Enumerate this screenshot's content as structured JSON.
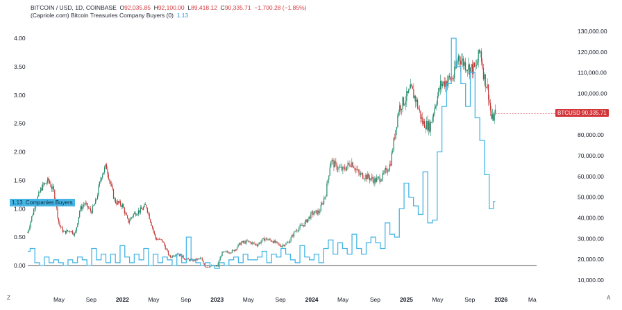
{
  "header": {
    "symbol": "BITCOIN / USD, 1D, COINBASE",
    "o_label": "O",
    "o_value": "92,035.85",
    "h_label": "H",
    "h_value": "92,100.00",
    "l_label": "L",
    "l_value": "89,418.12",
    "c_label": "C",
    "c_value": "90,335.71",
    "change": "−1,700.28 (−1.85%)",
    "indicator": "(Capriole.com) Bitcoin Treasuries Company Buyers (0)",
    "indicator_value": "1.13"
  },
  "tags": {
    "btc_label": "BTCUSD",
    "btc_value": "90,335.71",
    "left_value": "1.13",
    "left_label": "Companies Buyers"
  },
  "corners": {
    "bottom_left": "Z",
    "bottom_right": "A"
  },
  "colors": {
    "up": "#1f8a6b",
    "down": "#c43a3a",
    "indicator": "#45b5e6",
    "price_tag": "#d1363a",
    "axis": "#131722"
  },
  "chart_data": {
    "type": "line",
    "left_axis": {
      "ticks": [
        "0.00",
        "0.50",
        "1.00",
        "1.50",
        "2.00",
        "2.50",
        "3.00",
        "3.50",
        "4.00"
      ],
      "range": [
        0,
        4.0
      ]
    },
    "right_axis": {
      "ticks": [
        "10,000.00",
        "20,000.00",
        "30,000.00",
        "40,000.00",
        "50,000.00",
        "60,000.00",
        "70,000.00",
        "80,000.00",
        "90,000.00",
        "100,000.00",
        "110,000.00",
        "120,000.00",
        "130,000.00"
      ],
      "range": [
        10000,
        130000
      ]
    },
    "x_ticks": [
      {
        "label": "May",
        "t": 2021.33,
        "bold": false
      },
      {
        "label": "Sep",
        "t": 2021.67,
        "bold": false
      },
      {
        "label": "2022",
        "t": 2022.0,
        "bold": true
      },
      {
        "label": "May",
        "t": 2022.33,
        "bold": false
      },
      {
        "label": "Sep",
        "t": 2022.67,
        "bold": false
      },
      {
        "label": "2023",
        "t": 2023.0,
        "bold": true
      },
      {
        "label": "May",
        "t": 2023.33,
        "bold": false
      },
      {
        "label": "Sep",
        "t": 2023.67,
        "bold": false
      },
      {
        "label": "2024",
        "t": 2024.0,
        "bold": true
      },
      {
        "label": "May",
        "t": 2024.33,
        "bold": false
      },
      {
        "label": "Sep",
        "t": 2024.67,
        "bold": false
      },
      {
        "label": "2025",
        "t": 2025.0,
        "bold": true
      },
      {
        "label": "May",
        "t": 2025.33,
        "bold": false
      },
      {
        "label": "Sep",
        "t": 2025.67,
        "bold": false
      },
      {
        "label": "2026",
        "t": 2026.0,
        "bold": true
      },
      {
        "label": "Ma",
        "t": 2026.33,
        "bold": false
      }
    ],
    "x_range": [
      2021.0,
      2026.5
    ],
    "series": [
      {
        "name": "BTCUSD",
        "axis": "right",
        "x": [
          2021.0,
          2021.08,
          2021.15,
          2021.22,
          2021.28,
          2021.33,
          2021.38,
          2021.45,
          2021.5,
          2021.55,
          2021.6,
          2021.67,
          2021.72,
          2021.78,
          2021.83,
          2021.87,
          2021.92,
          2022.0,
          2022.06,
          2022.12,
          2022.2,
          2022.25,
          2022.3,
          2022.35,
          2022.42,
          2022.5,
          2022.58,
          2022.67,
          2022.75,
          2022.83,
          2022.87,
          2022.95,
          2023.0,
          2023.05,
          2023.1,
          2023.17,
          2023.25,
          2023.33,
          2023.42,
          2023.5,
          2023.58,
          2023.67,
          2023.75,
          2023.83,
          2023.92,
          2024.0,
          2024.08,
          2024.15,
          2024.2,
          2024.25,
          2024.33,
          2024.42,
          2024.5,
          2024.58,
          2024.67,
          2024.75,
          2024.83,
          2024.87,
          2024.92,
          2025.0,
          2025.05,
          2025.1,
          2025.17,
          2025.25,
          2025.3,
          2025.36,
          2025.42,
          2025.5,
          2025.55,
          2025.6,
          2025.67,
          2025.73,
          2025.78,
          2025.82,
          2025.86,
          2025.9,
          2025.94
        ],
        "values": [
          33000,
          47000,
          55000,
          58000,
          52000,
          37000,
          33000,
          34000,
          32000,
          44000,
          47000,
          43000,
          48000,
          61000,
          65000,
          57000,
          48000,
          46000,
          38000,
          42000,
          44000,
          46000,
          38000,
          30000,
          29000,
          21000,
          23000,
          20000,
          19500,
          20500,
          16500,
          16800,
          16700,
          23000,
          23500,
          24000,
          28000,
          28500,
          27000,
          30000,
          29000,
          26500,
          28000,
          34000,
          37000,
          42000,
          43000,
          52000,
          68000,
          65000,
          63000,
          67000,
          61000,
          60000,
          58000,
          60000,
          66000,
          78000,
          93000,
          98000,
          102000,
          97000,
          86000,
          84000,
          94000,
          104000,
          106000,
          108000,
          118000,
          115000,
          112000,
          112000,
          121000,
          108000,
          102000,
          87000,
          90300
        ]
      },
      {
        "name": "Companies Buyers",
        "axis": "left",
        "x": [
          2021.0,
          2021.05,
          2021.1,
          2021.15,
          2021.2,
          2021.25,
          2021.3,
          2021.35,
          2021.4,
          2021.45,
          2021.5,
          2021.55,
          2021.6,
          2021.65,
          2021.7,
          2021.75,
          2021.8,
          2021.85,
          2021.9,
          2021.95,
          2022.0,
          2022.05,
          2022.1,
          2022.15,
          2022.2,
          2022.25,
          2022.3,
          2022.35,
          2022.4,
          2022.45,
          2022.5,
          2022.55,
          2022.6,
          2022.65,
          2022.7,
          2022.75,
          2022.8,
          2022.85,
          2022.9,
          2022.95,
          2023.0,
          2023.05,
          2023.1,
          2023.15,
          2023.2,
          2023.25,
          2023.3,
          2023.35,
          2023.4,
          2023.45,
          2023.5,
          2023.55,
          2023.6,
          2023.65,
          2023.7,
          2023.75,
          2023.8,
          2023.85,
          2023.9,
          2023.95,
          2024.0,
          2024.05,
          2024.1,
          2024.15,
          2024.2,
          2024.25,
          2024.3,
          2024.35,
          2024.4,
          2024.45,
          2024.5,
          2024.55,
          2024.6,
          2024.65,
          2024.7,
          2024.75,
          2024.8,
          2024.85,
          2024.9,
          2024.95,
          2025.0,
          2025.05,
          2025.1,
          2025.15,
          2025.2,
          2025.25,
          2025.3,
          2025.35,
          2025.4,
          2025.45,
          2025.5,
          2025.55,
          2025.6,
          2025.65,
          2025.7,
          2025.75,
          2025.8,
          2025.85,
          2025.9,
          2025.94
        ],
        "values": [
          0.25,
          0.3,
          0.05,
          0.0,
          0.15,
          0.05,
          0.1,
          0.05,
          0.0,
          0.1,
          0.05,
          0.15,
          0.1,
          0.0,
          0.3,
          0.1,
          0.2,
          0.05,
          0.2,
          0.05,
          0.35,
          0.15,
          0.05,
          0.2,
          0.1,
          0.3,
          0.0,
          0.2,
          0.05,
          0.15,
          0.1,
          0.0,
          0.2,
          0.05,
          0.5,
          0.1,
          0.05,
          0.0,
          0.05,
          0.0,
          -0.05,
          0.05,
          0.0,
          0.1,
          0.15,
          0.05,
          0.2,
          0.1,
          0.1,
          0.15,
          0.25,
          0.05,
          0.2,
          0.15,
          0.3,
          0.2,
          0.1,
          0.05,
          0.35,
          0.15,
          0.1,
          0.2,
          0.05,
          0.3,
          0.45,
          0.2,
          0.4,
          0.3,
          0.2,
          0.55,
          0.3,
          0.2,
          0.4,
          0.5,
          0.4,
          0.3,
          0.75,
          0.55,
          0.5,
          1.0,
          1.45,
          1.2,
          1.05,
          0.9,
          1.65,
          0.75,
          0.8,
          2.0,
          2.8,
          3.2,
          4.0,
          3.5,
          3.2,
          2.8,
          3.4,
          2.6,
          2.2,
          1.6,
          1.0,
          1.13
        ]
      }
    ]
  }
}
